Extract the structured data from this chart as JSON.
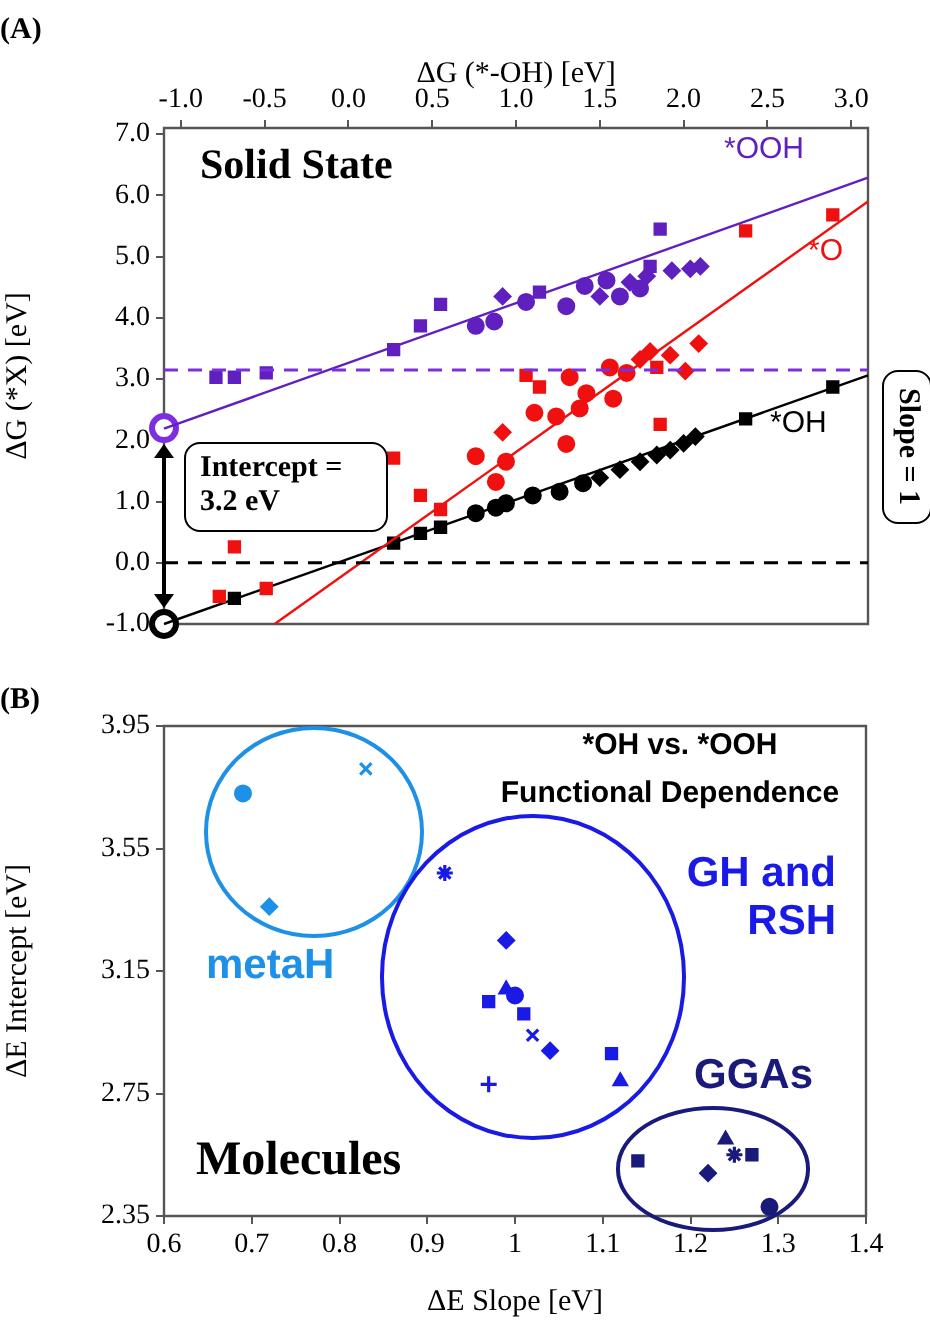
{
  "chart_data": [
    {
      "type": "scatter",
      "title": "(A)",
      "xlabel": "ΔG (*-OH) [eV]",
      "ylabel": "ΔG (*X) [eV]",
      "xlim": [
        -1.1,
        3.1
      ],
      "xticks": [
        {
          "value": -1.0,
          "label": "-1.0"
        },
        -0.5,
        {
          "value": 0,
          "label": "0.0"
        },
        0.5,
        {
          "value": 1,
          "label": "1.0"
        },
        1.5,
        {
          "value": 2,
          "label": "2.0"
        },
        2.5,
        {
          "value": 3,
          "label": "3.0"
        }
      ],
      "ylim": [
        -1.0,
        7.1
      ],
      "yticks": [
        {
          "value": -1,
          "label": "-1.0"
        },
        {
          "value": 0,
          "label": "0.0"
        },
        {
          "value": 1,
          "label": "1.0"
        },
        {
          "value": 2,
          "label": "2.0"
        },
        {
          "value": 3,
          "label": "3.0"
        },
        {
          "value": 4,
          "label": "4.0"
        },
        {
          "value": 5,
          "label": "5.0"
        },
        {
          "value": 6,
          "label": "6.0"
        },
        {
          "value": 7,
          "label": "7.0"
        }
      ],
      "grid": false,
      "legend": false,
      "series": [
        {
          "name": "*OOH",
          "color": "#6020c0",
          "x": [
            -0.79,
            -0.68,
            -0.49,
            0.27,
            0.43,
            0.55,
            0.76,
            0.87,
            0.92,
            1.06,
            1.14,
            1.3,
            1.41,
            1.5,
            1.54,
            1.62,
            1.68,
            1.74,
            1.78,
            1.8,
            1.86,
            1.92,
            1.93,
            2.04,
            2.1
          ],
          "values": [
            3.03,
            3.03,
            3.1,
            3.48,
            3.87,
            4.22,
            3.87,
            3.94,
            4.35,
            4.26,
            4.42,
            4.19,
            4.52,
            4.35,
            4.61,
            4.35,
            4.58,
            4.48,
            4.68,
            4.84,
            5.45,
            null,
            4.77,
            4.8,
            4.84
          ],
          "marker": [
            "square",
            "square",
            "square",
            "square",
            "square",
            "square",
            "circle",
            "circle",
            "diamond",
            "circle",
            "square",
            "circle",
            "circle",
            "diamond",
            "circle",
            "circle",
            "diamond",
            "circle",
            "diamond",
            "square",
            "square",
            "circle",
            "diamond",
            "diamond",
            "diamond"
          ]
        },
        {
          "type": "line",
          "color": "#6020c0",
          "x": [
            -1.1,
            3.1
          ],
          "values": [
            2.19,
            6.29
          ],
          "marker": "none"
        },
        {
          "name": "*O",
          "color": "#f01010",
          "x": [
            -0.77,
            -0.68,
            -0.49,
            0.27,
            0.43,
            0.55,
            0.76,
            0.88,
            0.94,
            0.92,
            1.06,
            1.11,
            1.14,
            1.24,
            1.3,
            1.32,
            1.38,
            1.42,
            1.56,
            1.58,
            1.66,
            1.74,
            1.8,
            1.84,
            1.86,
            1.92,
            2.01,
            2.09,
            2.37,
            2.89
          ],
          "values": [
            -0.55,
            0.26,
            -0.42,
            1.71,
            1.1,
            0.87,
            1.74,
            1.32,
            1.65,
            2.13,
            3.06,
            2.45,
            2.87,
            2.39,
            1.94,
            3.03,
            2.52,
            2.77,
            3.19,
            2.68,
            3.1,
            3.32,
            3.45,
            3.19,
            2.26,
            3.39,
            3.13,
            3.58,
            5.42,
            5.68
          ],
          "marker": [
            "square",
            "square",
            "square",
            "square",
            "square",
            "square",
            "circle",
            "circle",
            "circle",
            "diamond",
            "square",
            "circle",
            "square",
            "circle",
            "circle",
            "circle",
            "circle",
            "circle",
            "circle",
            "circle",
            "circle",
            "diamond",
            "diamond",
            "square",
            "square",
            "diamond",
            "diamond",
            "diamond",
            "square",
            "square"
          ]
        },
        {
          "type": "line",
          "color": "#f01010",
          "x": [
            -0.44,
            3.1
          ],
          "values": [
            -1.0,
            5.9
          ],
          "marker": "none"
        },
        {
          "name": "*OH",
          "color": "#000000",
          "x": [
            -0.68,
            0.27,
            0.43,
            0.55,
            0.76,
            0.88,
            0.94,
            1.1,
            1.26,
            1.4,
            1.5,
            1.62,
            1.74,
            1.84,
            1.92,
            2.0,
            2.07,
            2.37,
            2.89
          ],
          "values": [
            -0.58,
            0.32,
            0.48,
            0.58,
            0.81,
            0.9,
            0.97,
            1.1,
            1.16,
            1.3,
            1.39,
            1.52,
            1.65,
            1.76,
            1.84,
            1.95,
            2.06,
            2.35,
            2.87
          ],
          "marker": [
            "square",
            "square",
            "square",
            "square",
            "circle",
            "circle",
            "circle",
            "circle",
            "circle",
            "circle",
            "diamond",
            "diamond",
            "diamond",
            "diamond",
            "diamond",
            "diamond",
            "diamond",
            "square",
            "square"
          ]
        },
        {
          "type": "line",
          "color": "#000000",
          "x": [
            -1.1,
            3.1
          ],
          "values": [
            -1.0,
            3.06
          ],
          "marker": "none"
        },
        {
          "type": "scatter",
          "color": "#7b2fe0",
          "x": [
            -1.1
          ],
          "values": [
            2.2
          ],
          "marker": "circle"
        },
        {
          "type": "scatter",
          "color": "#000000",
          "x": [
            -1.1
          ],
          "values": [
            -1.0
          ],
          "marker": "circle"
        }
      ],
      "ref_lines": [
        {
          "axis": "y",
          "value": 3.15,
          "color": "#7b2fe0",
          "line_style": "dashed"
        },
        {
          "axis": "y",
          "value": 0.0,
          "color": "#000000",
          "line_style": "dashed"
        }
      ],
      "annotations": [
        "Solid State",
        "Intercept = 3.2 eV",
        "Slope = 1"
      ]
    },
    {
      "type": "scatter",
      "title": "(B)",
      "xlabel": "ΔE Slope [eV]",
      "ylabel": "ΔE Intercept [eV]",
      "xlim": [
        0.6,
        1.4
      ],
      "xticks": [
        0.6,
        0.7,
        0.8,
        0.9,
        1,
        1.1,
        1.2,
        1.3,
        1.4
      ],
      "ylim": [
        2.35,
        3.95
      ],
      "yticks": [
        2.35,
        2.75,
        3.15,
        3.55,
        3.95
      ],
      "grid": false,
      "legend": false,
      "series": [
        {
          "name": "metaH",
          "color": "#1e90e8",
          "x": [
            0.69,
            0.83,
            0.72
          ],
          "values": [
            3.73,
            3.81,
            3.36
          ],
          "marker": [
            "circle",
            "cross",
            "diamond"
          ]
        },
        {
          "name": "GH and RSH",
          "color": "#1a1ae6",
          "x": [
            0.92,
            0.99,
            0.99,
            1.0,
            0.97,
            1.01,
            1.02,
            1.04,
            1.11,
            1.12,
            0.97
          ],
          "values": [
            3.47,
            3.25,
            3.09,
            3.07,
            3.05,
            3.01,
            2.94,
            2.89,
            2.88,
            2.79,
            2.78
          ],
          "marker": [
            "star",
            "diamond",
            "triangle",
            "circle",
            "square",
            "square",
            "cross",
            "diamond",
            "square",
            "triangle",
            "plus"
          ]
        },
        {
          "name": "GGAs",
          "color": "#1a1a7a",
          "x": [
            1.14,
            1.22,
            1.24,
            1.25,
            1.27,
            1.29
          ],
          "values": [
            2.53,
            2.49,
            2.6,
            2.55,
            2.55,
            2.38
          ],
          "marker": [
            "square",
            "diamond",
            "triangle",
            "star",
            "square",
            "circle"
          ]
        }
      ],
      "annotations": [
        "*OH vs. *OOH",
        "Functional Dependence",
        "Molecules"
      ]
    }
  ]
}
